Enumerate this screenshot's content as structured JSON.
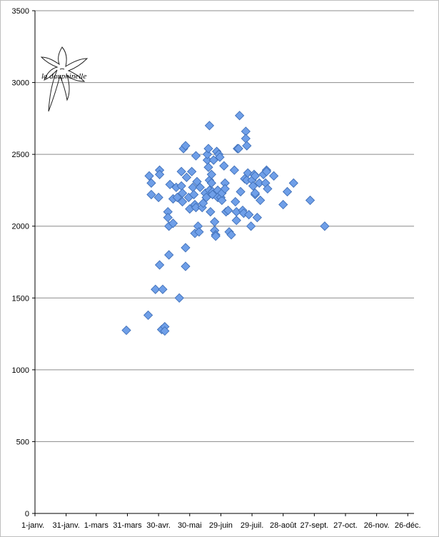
{
  "logo": {
    "text": "la dauphinelle"
  },
  "chart_data": {
    "type": "scatter",
    "title": "",
    "xlabel": "",
    "ylabel": "",
    "ylim": [
      0,
      3500
    ],
    "yticks": [
      0,
      500,
      1000,
      1500,
      2000,
      2500,
      3000,
      3500
    ],
    "xlim": [
      1,
      366
    ],
    "xticks": [
      {
        "label": "1-janv.",
        "day": 1
      },
      {
        "label": "31-janv.",
        "day": 31
      },
      {
        "label": "1-mars",
        "day": 60
      },
      {
        "label": "31-mars",
        "day": 90
      },
      {
        "label": "30-avr.",
        "day": 120
      },
      {
        "label": "30-mai",
        "day": 150
      },
      {
        "label": "29-juin",
        "day": 180
      },
      {
        "label": "29-juil.",
        "day": 210
      },
      {
        "label": "28-août",
        "day": 240
      },
      {
        "label": "27-sept.",
        "day": 270
      },
      {
        "label": "27-oct.",
        "day": 300
      },
      {
        "label": "26-nov.",
        "day": 330
      },
      {
        "label": "26-déc.",
        "day": 360
      }
    ],
    "grid": "horizontal",
    "marker": "diamond",
    "marker_color": "#6f9fe8",
    "points": [
      [
        89,
        1275
      ],
      [
        110,
        1380
      ],
      [
        111,
        2350
      ],
      [
        113,
        2220
      ],
      [
        113,
        2300
      ],
      [
        117,
        1560
      ],
      [
        120,
        2200
      ],
      [
        121,
        2390
      ],
      [
        121,
        2360
      ],
      [
        121,
        1730
      ],
      [
        123,
        1280
      ],
      [
        124,
        1560
      ],
      [
        126,
        1300
      ],
      [
        126,
        1270
      ],
      [
        129,
        2100
      ],
      [
        129,
        2060
      ],
      [
        130,
        1800
      ],
      [
        130,
        2000
      ],
      [
        131,
        2290
      ],
      [
        134,
        2020
      ],
      [
        134,
        2190
      ],
      [
        137,
        2270
      ],
      [
        138,
        2200
      ],
      [
        140,
        1500
      ],
      [
        142,
        2280
      ],
      [
        142,
        2380
      ],
      [
        143,
        2230
      ],
      [
        143,
        2170
      ],
      [
        144,
        2540
      ],
      [
        146,
        2560
      ],
      [
        146,
        1850
      ],
      [
        146,
        1720
      ],
      [
        147,
        2340
      ],
      [
        149,
        2200
      ],
      [
        150,
        2120
      ],
      [
        152,
        2380
      ],
      [
        153,
        2270
      ],
      [
        154,
        2220
      ],
      [
        155,
        2150
      ],
      [
        155,
        1950
      ],
      [
        156,
        2490
      ],
      [
        156,
        2130
      ],
      [
        157,
        2310
      ],
      [
        158,
        2000
      ],
      [
        159,
        1960
      ],
      [
        160,
        2270
      ],
      [
        162,
        2130
      ],
      [
        163,
        2160
      ],
      [
        165,
        2230
      ],
      [
        166,
        2200
      ],
      [
        167,
        2460
      ],
      [
        167,
        2500
      ],
      [
        168,
        2540
      ],
      [
        168,
        2410
      ],
      [
        169,
        2250
      ],
      [
        169,
        2320
      ],
      [
        169,
        2700
      ],
      [
        170,
        2100
      ],
      [
        171,
        2360
      ],
      [
        171,
        2300
      ],
      [
        172,
        2240
      ],
      [
        172,
        2220
      ],
      [
        173,
        2460
      ],
      [
        174,
        2030
      ],
      [
        174,
        1970
      ],
      [
        175,
        1940
      ],
      [
        175,
        1930
      ],
      [
        176,
        2520
      ],
      [
        177,
        2250
      ],
      [
        177,
        2200
      ],
      [
        178,
        2500
      ],
      [
        179,
        2480
      ],
      [
        180,
        2200
      ],
      [
        181,
        2180
      ],
      [
        181,
        2230
      ],
      [
        183,
        2420
      ],
      [
        184,
        2300
      ],
      [
        184,
        2260
      ],
      [
        185,
        2100
      ],
      [
        187,
        2110
      ],
      [
        188,
        1960
      ],
      [
        190,
        1940
      ],
      [
        193,
        2390
      ],
      [
        194,
        2170
      ],
      [
        195,
        2100
      ],
      [
        195,
        2040
      ],
      [
        196,
        2540
      ],
      [
        197,
        2540
      ],
      [
        198,
        2770
      ],
      [
        199,
        2240
      ],
      [
        201,
        2110
      ],
      [
        202,
        2090
      ],
      [
        203,
        2330
      ],
      [
        204,
        2660
      ],
      [
        204,
        2610
      ],
      [
        205,
        2560
      ],
      [
        205,
        2320
      ],
      [
        206,
        2370
      ],
      [
        207,
        2080
      ],
      [
        209,
        2000
      ],
      [
        210,
        2320
      ],
      [
        211,
        2280
      ],
      [
        212,
        2360
      ],
      [
        213,
        2350
      ],
      [
        213,
        2220
      ],
      [
        213,
        2230
      ],
      [
        215,
        2060
      ],
      [
        217,
        2300
      ],
      [
        218,
        2180
      ],
      [
        221,
        2360
      ],
      [
        223,
        2300
      ],
      [
        224,
        2390
      ],
      [
        224,
        2380
      ],
      [
        225,
        2260
      ],
      [
        231,
        2350
      ],
      [
        240,
        2150
      ],
      [
        244,
        2240
      ],
      [
        266,
        2180
      ],
      [
        280,
        2000
      ],
      [
        250,
        2300
      ]
    ]
  }
}
